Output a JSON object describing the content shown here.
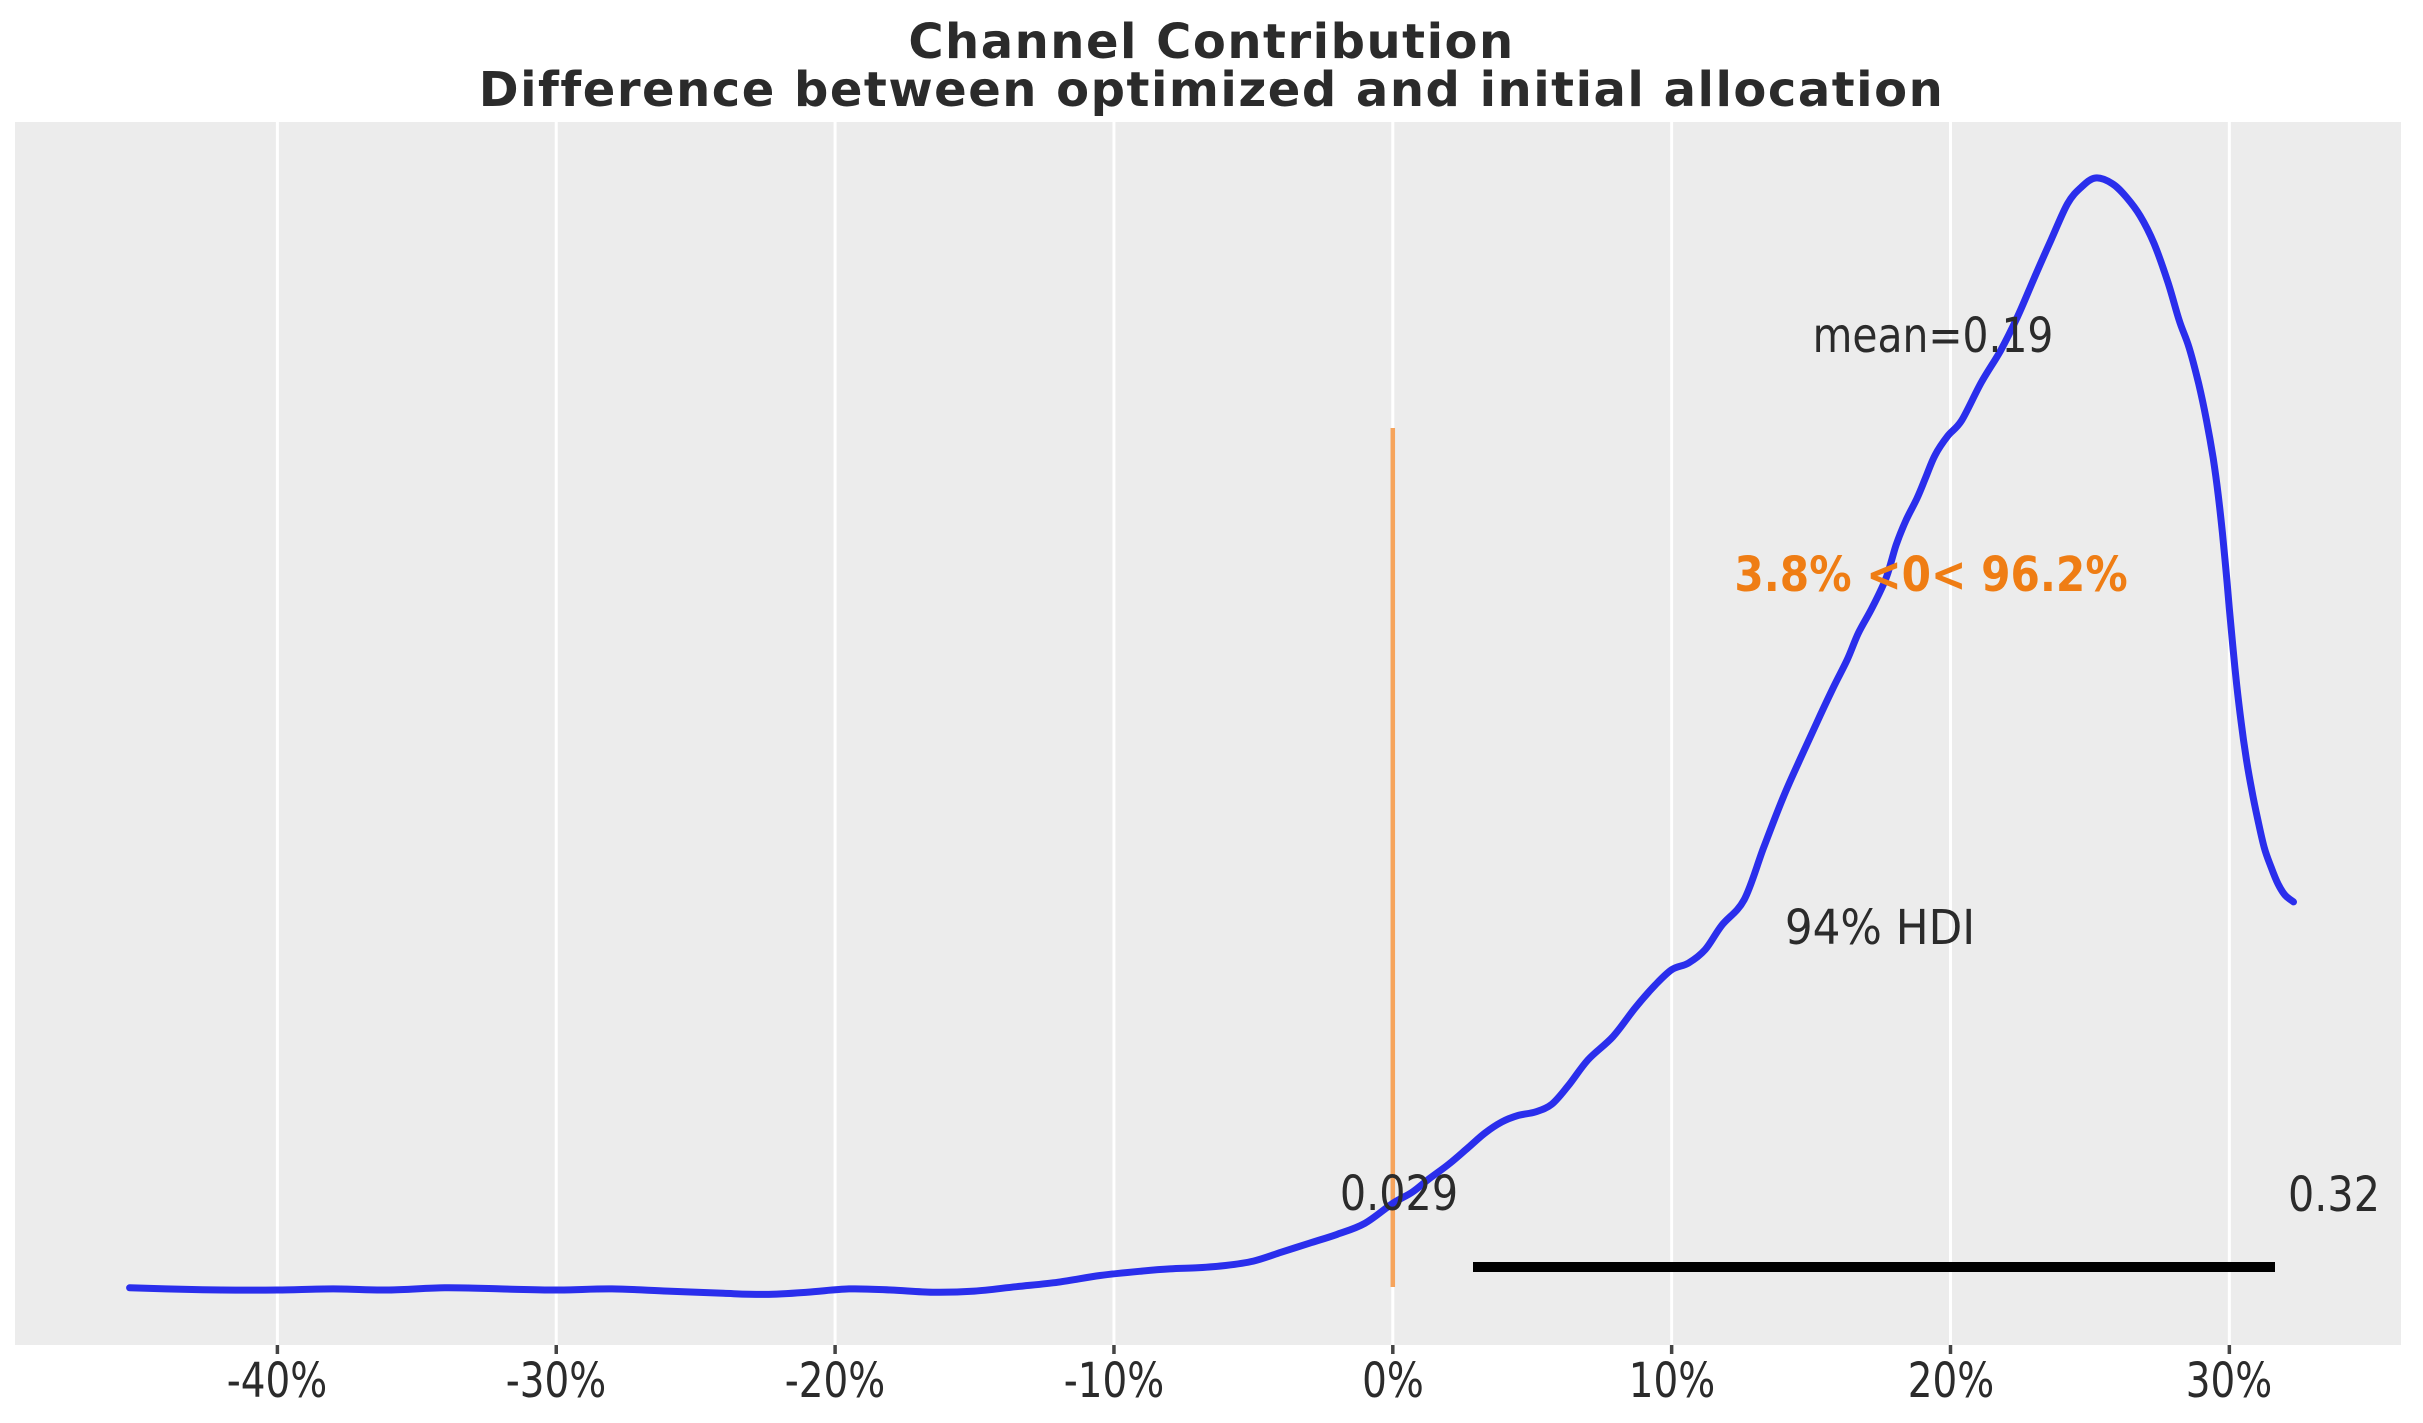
{
  "title": {
    "line1": "Channel Contribution",
    "line2": "Difference between optimized and initial allocation"
  },
  "annotations": {
    "mean_label": "mean=0.19",
    "prob_label": "3.8% <0< 96.2%",
    "hdi_label": "94% HDI",
    "hdi_lo": "0.029",
    "hdi_hi": "0.32"
  },
  "colors": {
    "plot_background": "#ececec",
    "gridline": "#ffffff",
    "curve": "#2a2eec",
    "ref_line": "#f6a45c",
    "ref_text": "#ef7d14",
    "hdi_bar": "#000000",
    "text": "#2b2b2b",
    "tick_stub": "#444444"
  },
  "chart_data": {
    "type": "area",
    "title": "Channel Contribution — Difference between optimized and initial allocation",
    "xlabel": "",
    "ylabel": "",
    "x_tick_labels": [
      "-40%",
      "-30%",
      "-20%",
      "-10%",
      "0%",
      "10%",
      "20%",
      "30%"
    ],
    "x_tick_values": [
      -40,
      -30,
      -20,
      -10,
      0,
      10,
      20,
      30
    ],
    "xlim": [
      -49.4,
      36.2
    ],
    "grid": "vertical white gridlines on gray background",
    "legend": "none",
    "mean": 0.19,
    "ref_line": {
      "x": 0,
      "label": "3.8% <0< 96.2%",
      "pct_below": 3.8,
      "pct_above": 96.2
    },
    "hdi": {
      "interval_label": "94% HDI",
      "lo": 0.029,
      "hi": 0.32,
      "lo_pct": 2.87,
      "hi_pct": 31.6
    },
    "curve": {
      "x_unit": "percent",
      "y_unit": "density normalized to peak = 1",
      "points": [
        [
          -45.3,
          0.002
        ],
        [
          -44,
          0.001
        ],
        [
          -42,
          0.0
        ],
        [
          -40,
          0.0
        ],
        [
          -38,
          0.001
        ],
        [
          -36,
          0.0
        ],
        [
          -34,
          0.002
        ],
        [
          -32,
          0.001
        ],
        [
          -30,
          0.0
        ],
        [
          -28,
          0.001
        ],
        [
          -26,
          -0.001
        ],
        [
          -24,
          -0.003
        ],
        [
          -22.5,
          -0.004
        ],
        [
          -21,
          -0.002
        ],
        [
          -19.5,
          0.001
        ],
        [
          -18,
          0.0
        ],
        [
          -16.5,
          -0.002
        ],
        [
          -15,
          -0.001
        ],
        [
          -13.5,
          0.003
        ],
        [
          -12,
          0.007
        ],
        [
          -10.5,
          0.013
        ],
        [
          -9,
          0.017
        ],
        [
          -8,
          0.019
        ],
        [
          -7,
          0.02
        ],
        [
          -6,
          0.022
        ],
        [
          -5,
          0.026
        ],
        [
          -4,
          0.034
        ],
        [
          -3,
          0.042
        ],
        [
          -2,
          0.05
        ],
        [
          -1,
          0.06
        ],
        [
          0,
          0.078
        ],
        [
          0.7,
          0.088
        ],
        [
          1.3,
          0.1
        ],
        [
          2,
          0.113
        ],
        [
          2.7,
          0.128
        ],
        [
          3.3,
          0.141
        ],
        [
          3.9,
          0.151
        ],
        [
          4.5,
          0.157
        ],
        [
          5.1,
          0.16
        ],
        [
          5.7,
          0.167
        ],
        [
          6.3,
          0.184
        ],
        [
          7,
          0.207
        ],
        [
          7.9,
          0.228
        ],
        [
          8.7,
          0.254
        ],
        [
          9.4,
          0.274
        ],
        [
          10,
          0.288
        ],
        [
          10.6,
          0.294
        ],
        [
          11.2,
          0.306
        ],
        [
          11.8,
          0.328
        ],
        [
          12.6,
          0.351
        ],
        [
          13.3,
          0.398
        ],
        [
          14,
          0.443
        ],
        [
          14.6,
          0.477
        ],
        [
          15.2,
          0.51
        ],
        [
          15.8,
          0.542
        ],
        [
          16.3,
          0.567
        ],
        [
          16.7,
          0.591
        ],
        [
          17.2,
          0.614
        ],
        [
          17.7,
          0.641
        ],
        [
          18.05,
          0.67
        ],
        [
          18.4,
          0.692
        ],
        [
          18.8,
          0.712
        ],
        [
          19.1,
          0.73
        ],
        [
          19.45,
          0.751
        ],
        [
          19.9,
          0.768
        ],
        [
          20.4,
          0.782
        ],
        [
          21.1,
          0.816
        ],
        [
          21.8,
          0.845
        ],
        [
          22.4,
          0.875
        ],
        [
          23,
          0.91
        ],
        [
          23.6,
          0.944
        ],
        [
          24.2,
          0.977
        ],
        [
          24.7,
          0.992
        ],
        [
          25.2,
          1.0
        ],
        [
          25.8,
          0.995
        ],
        [
          26.3,
          0.983
        ],
        [
          26.8,
          0.966
        ],
        [
          27.3,
          0.941
        ],
        [
          27.8,
          0.906
        ],
        [
          28.2,
          0.872
        ],
        [
          28.55,
          0.848
        ],
        [
          28.9,
          0.815
        ],
        [
          29.18,
          0.782
        ],
        [
          29.42,
          0.748
        ],
        [
          29.6,
          0.715
        ],
        [
          29.75,
          0.681
        ],
        [
          29.88,
          0.647
        ],
        [
          30.0,
          0.613
        ],
        [
          30.12,
          0.58
        ],
        [
          30.26,
          0.545
        ],
        [
          30.42,
          0.511
        ],
        [
          30.6,
          0.479
        ],
        [
          30.8,
          0.45
        ],
        [
          31.02,
          0.423
        ],
        [
          31.25,
          0.398
        ],
        [
          31.5,
          0.38
        ],
        [
          31.75,
          0.365
        ],
        [
          32.0,
          0.355
        ],
        [
          32.3,
          0.349
        ]
      ]
    }
  }
}
